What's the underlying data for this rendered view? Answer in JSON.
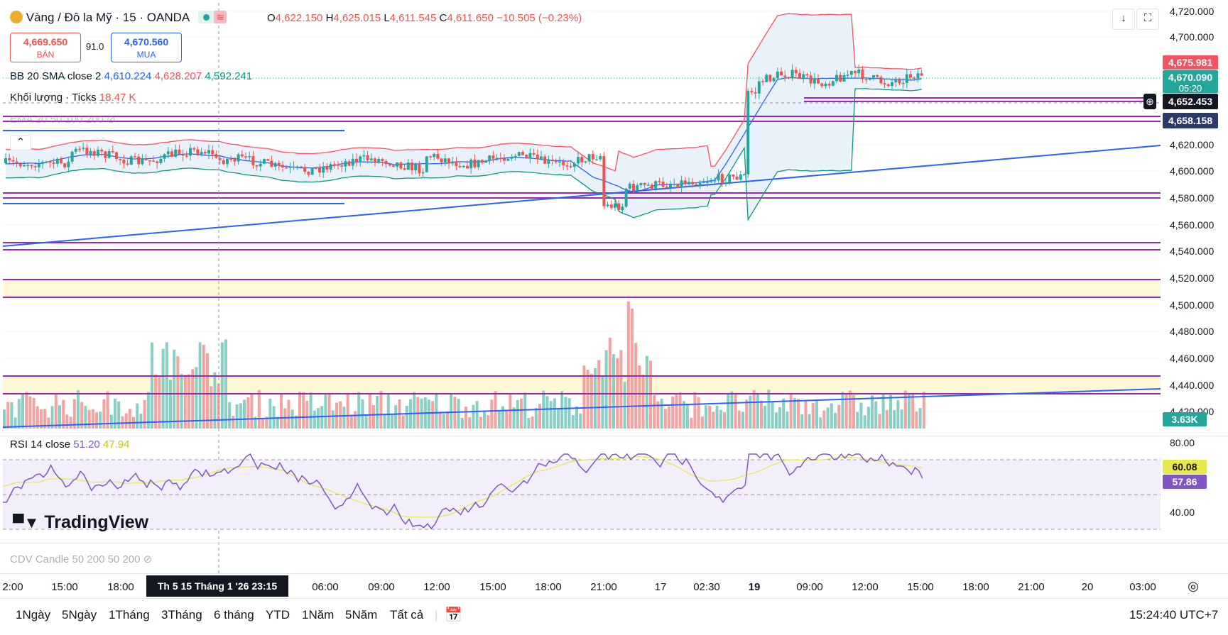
{
  "header": {
    "symbol": "Vàng / Đô la Mỹ · 15 · OANDA",
    "ohlc": {
      "o_label": "O",
      "o": "4,622.150",
      "h_label": "H",
      "h": "4,625.015",
      "l_label": "L",
      "l": "4,611.545",
      "c_label": "C",
      "c": "4,611.650",
      "change": "−10.505 (−0.23%)"
    },
    "sell_price": "4,669.650",
    "sell_label": "BÁN",
    "spread": "91.0",
    "buy_price": "4,670.560",
    "buy_label": "MUA"
  },
  "indicators": {
    "bb": {
      "name": "BB 20 SMA close 2",
      "basis": "4,610.224",
      "upper": "4,628.207",
      "lower": "4,592.241"
    },
    "volume": {
      "name": "Khối lượng · Ticks",
      "value": "18.47 K"
    },
    "ema": {
      "name": "EMA 20 50 100 200"
    },
    "rsi": {
      "name": "RSI 14 close",
      "value": "51.20",
      "ma": "47.94"
    },
    "cdv": {
      "name": "CDV Candle 50 200 50 200"
    }
  },
  "price_axis": {
    "ticks": [
      "4,720.000",
      "4,700.000",
      "4,620.000",
      "4,600.000",
      "4,580.000",
      "4,560.000",
      "4,540.000",
      "4,520.000",
      "4,500.000",
      "4,480.000",
      "4,460.000",
      "4,440.000",
      "4,420.000"
    ],
    "labels": {
      "upper_band": "4,675.981",
      "last_price": "4,670.090",
      "countdown": "05:20",
      "crosshair": "4,652.453",
      "level": "4,658.158",
      "volume": "3.63K"
    }
  },
  "rsi_axis": {
    "ticks": [
      "80.00",
      "40.00"
    ],
    "ma_label": "60.08",
    "rsi_label": "57.86"
  },
  "time_axis": {
    "ticks": [
      "2:00",
      "15:00",
      "18:00",
      "06:00",
      "09:00",
      "12:00",
      "15:00",
      "18:00",
      "21:00",
      "17",
      "02:30",
      "19",
      "09:00",
      "12:00",
      "15:00",
      "18:00",
      "21:00",
      "20",
      "03:00"
    ],
    "crosshair_label": "Th 5 15 Tháng 1 '26   23:15"
  },
  "watermark": "TradingView",
  "ranges": [
    "1Ngày",
    "5Ngày",
    "1Tháng",
    "3Tháng",
    "6 tháng",
    "YTD",
    "1Năm",
    "5Năm",
    "Tất cả"
  ],
  "clock": "15:24:40 UTC+7",
  "colors": {
    "up": "#26a69a",
    "down": "#ef5350",
    "bb_upper": "#f7525f",
    "bb_basis": "#2962ff",
    "bb_lower": "#089981",
    "level_line": "#9c27b0",
    "trend_line": "#2962ff",
    "rsi": "#7e57c2",
    "rsi_ma": "#e8e84a"
  }
}
